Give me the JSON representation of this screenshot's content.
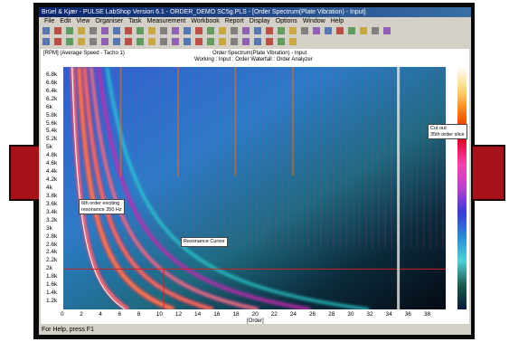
{
  "window": {
    "title": "Brüel & Kjær - PULSE LabShop Version 6.1 - ORDER_DEMO SC5g.PLS - [Order Spectrum(Plate Vibration) - Input]"
  },
  "menu": {
    "items": [
      "File",
      "Edit",
      "View",
      "Organiser",
      "Task",
      "Measurement",
      "Workbook",
      "Report",
      "Display",
      "Options",
      "Window",
      "Help"
    ]
  },
  "chart": {
    "top_left_label": "[RPM] (Average Speed - Tacho 1)",
    "title_line1": "Order Spectrum(Plate Vibration) - Input",
    "title_line2": "Working : Input : Order Waterfall : Order Analyzer",
    "xlabel": "[Order]",
    "annotations": {
      "resonance": "6th order exciting\nresonance 350 Hz",
      "cursor": "Resonance Cursor",
      "cutout": "Cut out\n35th order slice"
    }
  },
  "chart_data": {
    "type": "heatmap",
    "xlabel": "[Order]",
    "ylabel": "[RPM] (Average Speed - Tacho 1)",
    "xlim": [
      0,
      40
    ],
    "ylim": [
      1000,
      7000
    ],
    "x_ticks": [
      "0",
      "2",
      "4",
      "6",
      "8",
      "10",
      "12",
      "14",
      "16",
      "18",
      "20",
      "22",
      "24",
      "26",
      "28",
      "30",
      "32",
      "34",
      "36",
      "38"
    ],
    "y_ticks": [
      "6.8k",
      "6.6k",
      "6.4k",
      "6.2k",
      "6k",
      "5.8k",
      "5.6k",
      "5.4k",
      "5.2k",
      "5k",
      "4.8k",
      "4.6k",
      "4.4k",
      "4.2k",
      "4k",
      "3.8k",
      "3.6k",
      "3.4k",
      "3.2k",
      "3k",
      "2.8k",
      "2.6k",
      "2.4k",
      "2.2k",
      "2k",
      "1.8k",
      "1.6k",
      "1.4k",
      "1.2k"
    ],
    "cursors": {
      "order_slice": 35,
      "rpm_cursor": 2000,
      "order_cursor": 10.5
    },
    "resonance_hz": 350,
    "bright_orders": [
      6,
      12,
      18,
      24
    ]
  },
  "statusbar": {
    "text": "For Help, press F1"
  }
}
